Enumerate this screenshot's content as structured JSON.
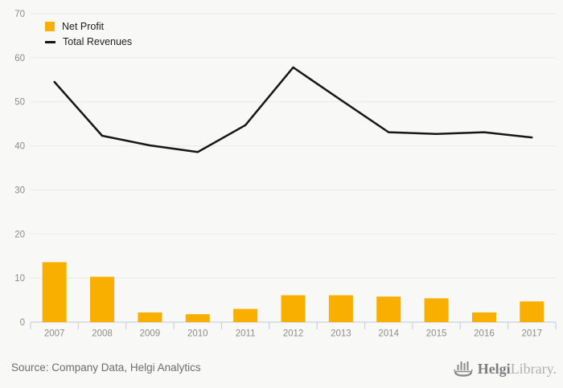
{
  "chart_data": {
    "type": "bar+line",
    "categories": [
      "2007",
      "2008",
      "2009",
      "2010",
      "2011",
      "2012",
      "2013",
      "2014",
      "2015",
      "2016",
      "2017"
    ],
    "series": [
      {
        "name": "Net Profit",
        "type": "bar",
        "color": "#F9AF00",
        "values": [
          13.6,
          10.3,
          2.2,
          1.8,
          3.0,
          6.1,
          6.1,
          5.8,
          5.4,
          2.2,
          4.7
        ]
      },
      {
        "name": "Total Revenues",
        "type": "line",
        "color": "#161616",
        "values": [
          54.5,
          42.3,
          40.1,
          38.6,
          44.7,
          57.8,
          50.4,
          43.1,
          42.7,
          43.1,
          41.9
        ]
      }
    ],
    "title": "",
    "xlabel": "",
    "ylabel": "",
    "ylim": [
      0,
      70
    ],
    "ytick_step": 10,
    "grid": true,
    "legend_position": "top-left"
  },
  "legend": {
    "items": [
      {
        "label": "Net Profit",
        "swatch": "square",
        "color": "#F9AF00"
      },
      {
        "label": "Total Revenues",
        "swatch": "line",
        "color": "#161616"
      }
    ]
  },
  "footer": {
    "source": "Source: Company Data, Helgi Analytics",
    "logo": {
      "icon": "viking-ship-icon",
      "brand_bold": "Helgi",
      "brand_light": "Library."
    }
  },
  "colors": {
    "background": "#F8F8F7",
    "bar": "#F9AF00",
    "line": "#161616",
    "grid": "#E9E9E6",
    "axis": "#C9D2DF",
    "tick_label": "#8B8B8B"
  }
}
